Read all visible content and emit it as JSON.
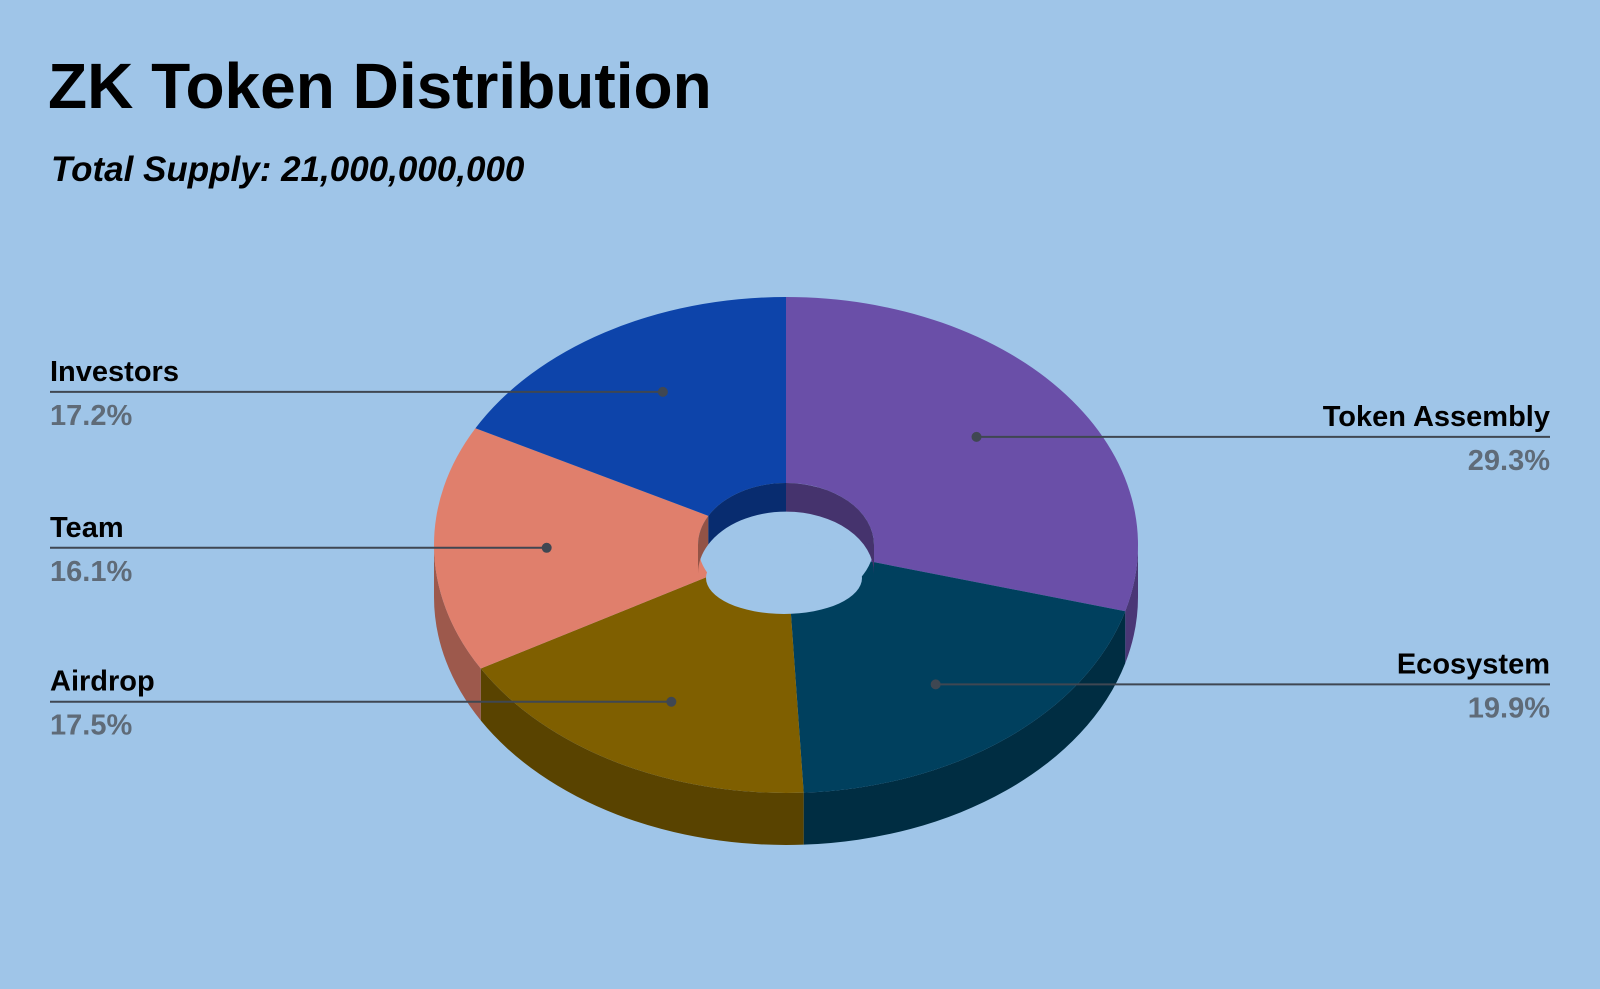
{
  "chart_data": {
    "type": "pie",
    "variant": "3d-donut",
    "title": "ZK Token Distribution",
    "subtitle": "Total Supply: 21,000,000,000",
    "background_color": "#9fc5e8",
    "slices": [
      {
        "label": "Token Assembly",
        "value": 29.3,
        "value_label": "29.3%",
        "color": "#6a4fa8"
      },
      {
        "label": "Ecosystem",
        "value": 19.9,
        "value_label": "19.9%",
        "color": "#00405e"
      },
      {
        "label": "Airdrop",
        "value": 17.5,
        "value_label": "17.5%",
        "color": "#7f5f00"
      },
      {
        "label": "Team",
        "value": 16.1,
        "value_label": "16.1%",
        "color": "#e07f6c"
      },
      {
        "label": "Investors",
        "value": 17.2,
        "value_label": "17.2%",
        "color": "#0d44aa"
      }
    ],
    "legend": "none",
    "label_placement": "outside-with-leaders"
  }
}
